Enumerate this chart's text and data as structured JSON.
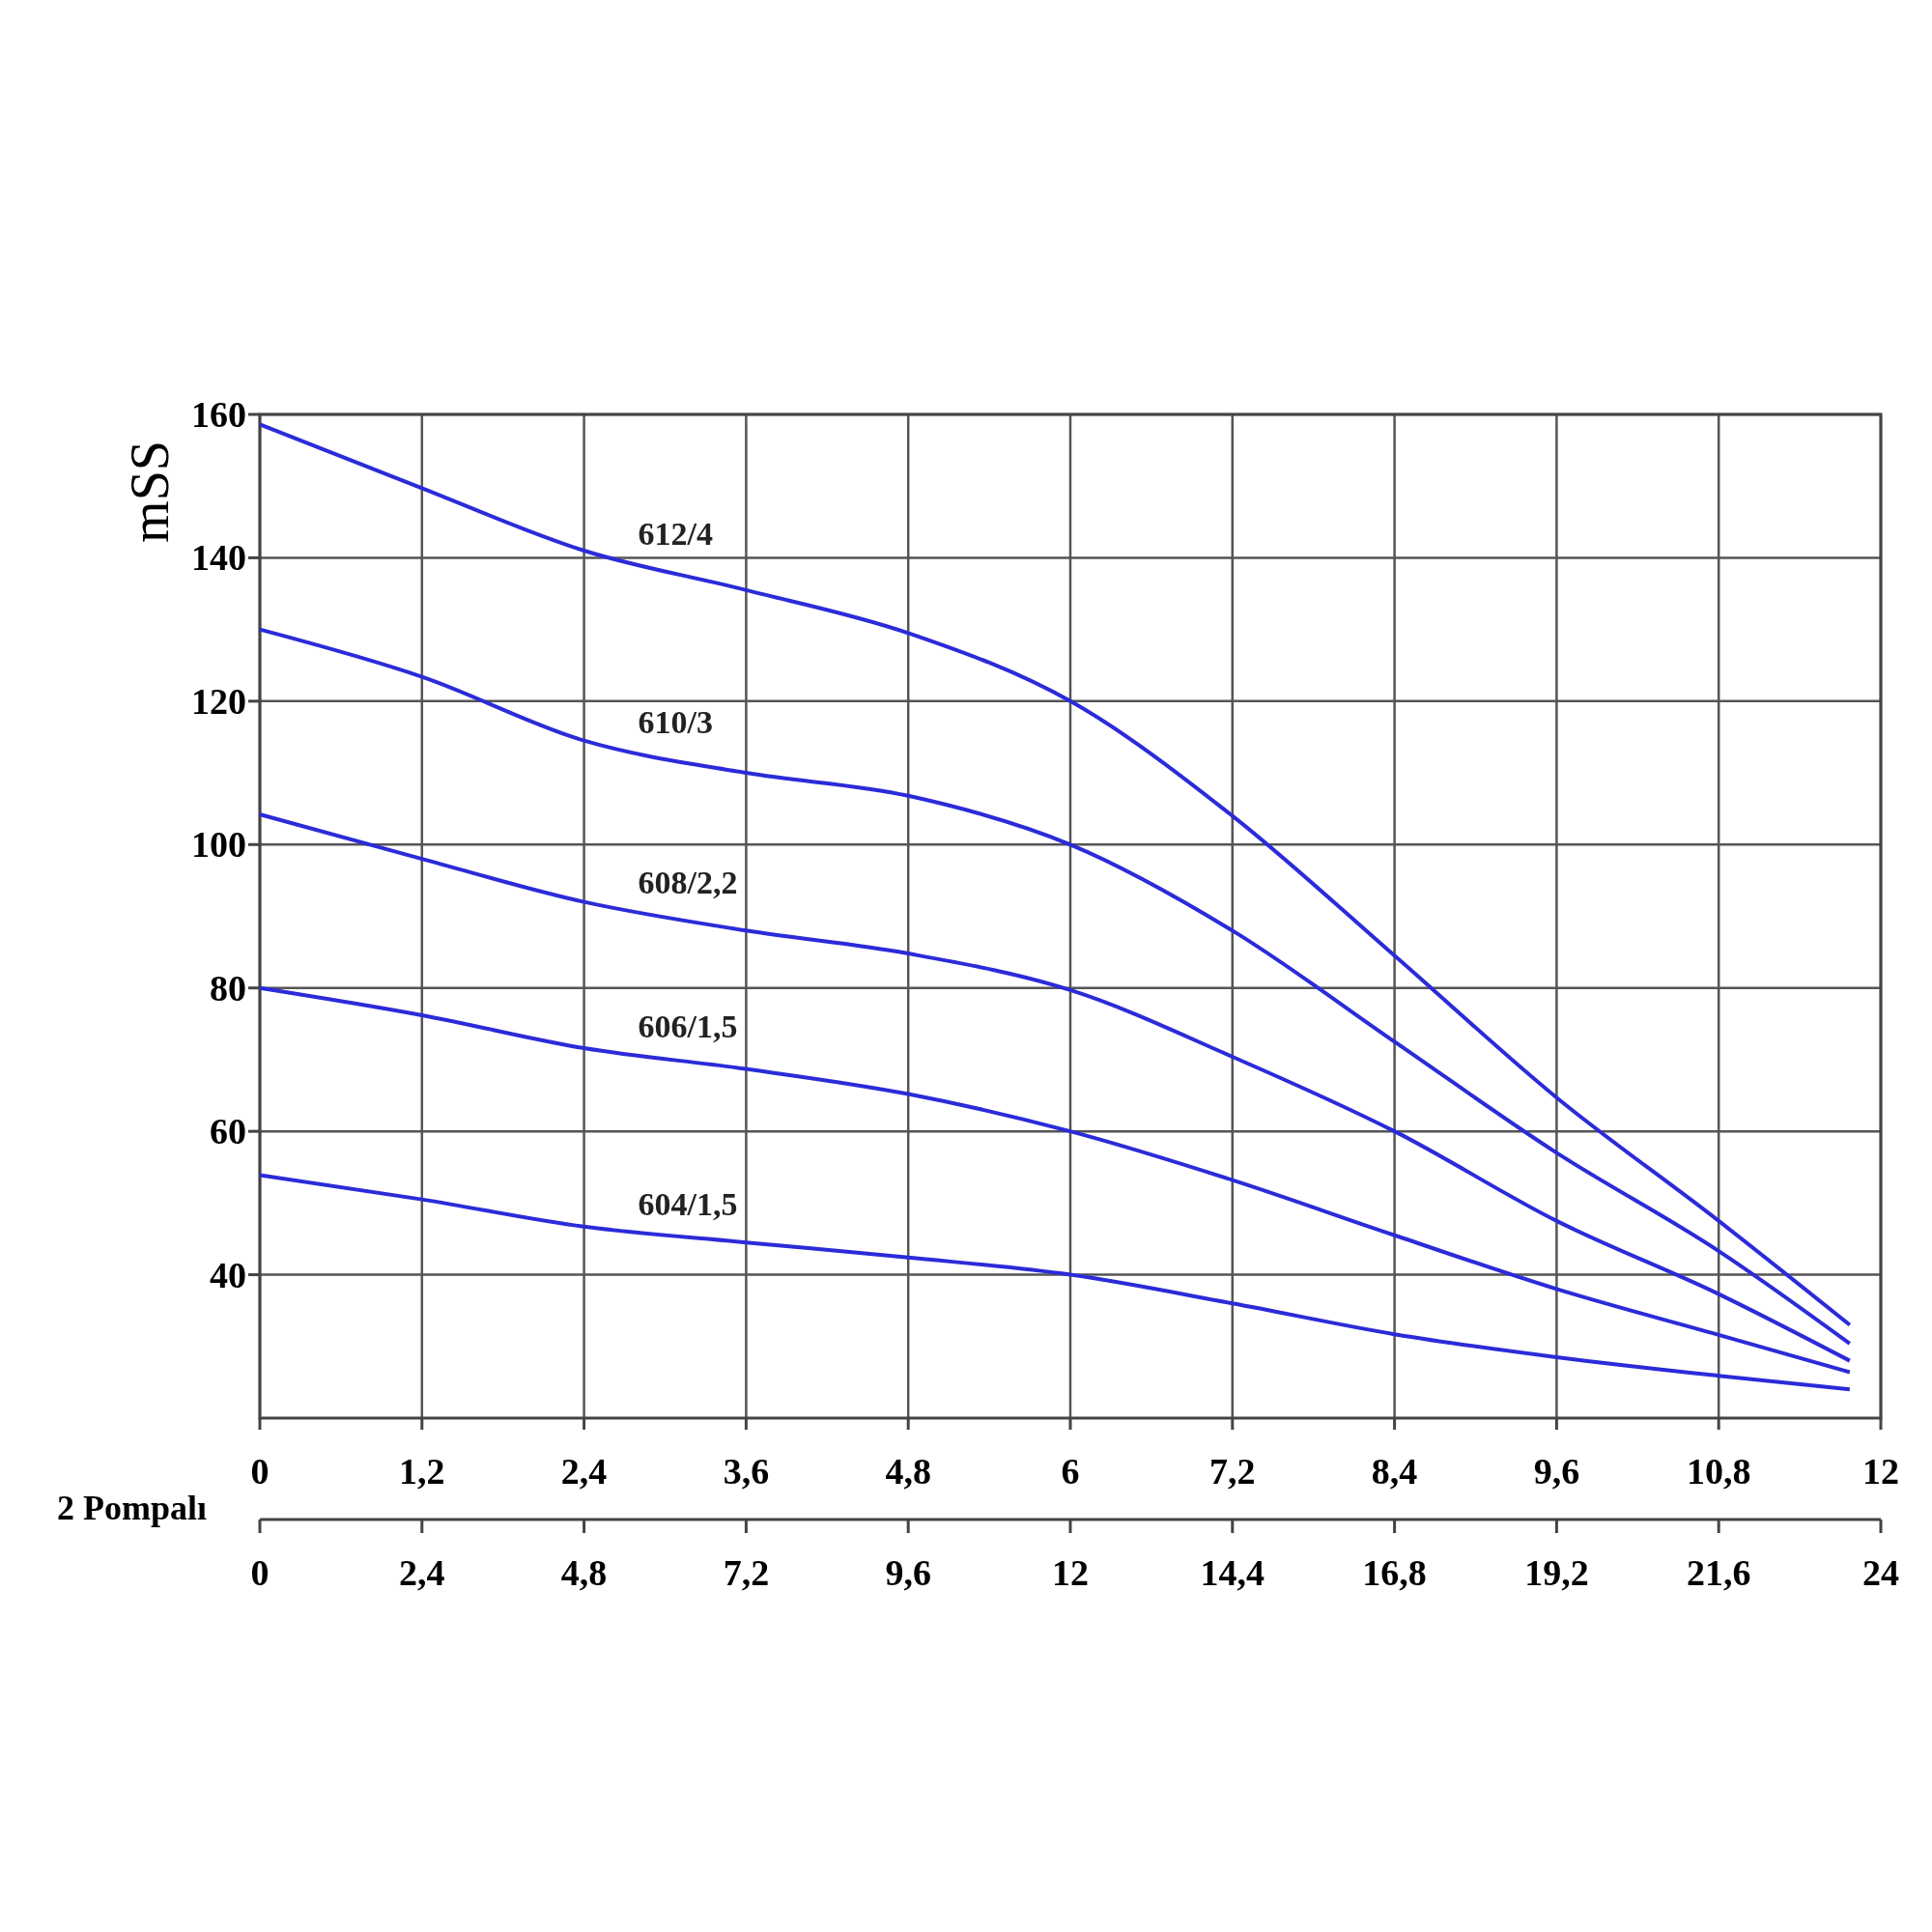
{
  "chart_data": {
    "type": "line",
    "ylabel": "mSS",
    "x2label": "2 Pompalı",
    "xlim": [
      0,
      12
    ],
    "ylim": [
      20,
      160
    ],
    "xticks": [
      0,
      {
        "value": 1.2,
        "label": "1,2"
      },
      {
        "value": 2.4,
        "label": "2,4"
      },
      {
        "value": 3.6,
        "label": "3,6"
      },
      {
        "value": 4.8,
        "label": "4,8"
      },
      6,
      {
        "value": 7.2,
        "label": "7,2"
      },
      {
        "value": 8.4,
        "label": "8,4"
      },
      {
        "value": 9.6,
        "label": "9,6"
      },
      {
        "value": 10.8,
        "label": "10,8"
      },
      12
    ],
    "x2lim": [
      0,
      24
    ],
    "x2ticks": [
      0,
      {
        "value": 2.4,
        "label": "2,4"
      },
      {
        "value": 4.8,
        "label": "4,8"
      },
      {
        "value": 7.2,
        "label": "7,2"
      },
      {
        "value": 9.6,
        "label": "9,6"
      },
      12,
      {
        "value": 14.4,
        "label": "14,4"
      },
      {
        "value": 16.8,
        "label": "16,8"
      },
      {
        "value": 19.2,
        "label": "19,2"
      },
      {
        "value": 21.6,
        "label": "21,6"
      },
      24
    ],
    "yticks": [
      40,
      60,
      80,
      100,
      120,
      140,
      160
    ],
    "grid": true,
    "x": [
      0,
      1.2,
      2.4,
      3.6,
      4.8,
      6,
      7.2,
      8.4,
      9.6,
      10.8,
      11.77
    ],
    "series": [
      {
        "name": "612/4",
        "color": "#2b2bd9",
        "values": [
          158.6,
          149.7,
          141,
          135.5,
          129.5,
          120,
          104,
          84.5,
          64.7,
          47.5,
          33
        ]
      },
      {
        "name": "610/3",
        "color": "#2b2bd9",
        "values": [
          130,
          123.4,
          114.5,
          110,
          106.8,
          100,
          88,
          72.5,
          57,
          43.3,
          30.4
        ]
      },
      {
        "name": "608/2,2",
        "color": "#2b2bd9",
        "values": [
          104.2,
          98,
          92,
          88,
          84.8,
          79.7,
          70.4,
          60,
          47.5,
          37.3,
          28
        ]
      },
      {
        "name": "606/1,5",
        "color": "#2b2bd9",
        "values": [
          80,
          76.2,
          71.6,
          68.7,
          65.2,
          60,
          53.2,
          45.5,
          38,
          31.6,
          26.4
        ]
      },
      {
        "name": "604/1,5",
        "color": "#2b2bd9",
        "values": [
          53.9,
          50.5,
          46.7,
          44.5,
          42.4,
          40,
          36,
          31.7,
          28.5,
          25.9,
          24
        ]
      }
    ]
  }
}
